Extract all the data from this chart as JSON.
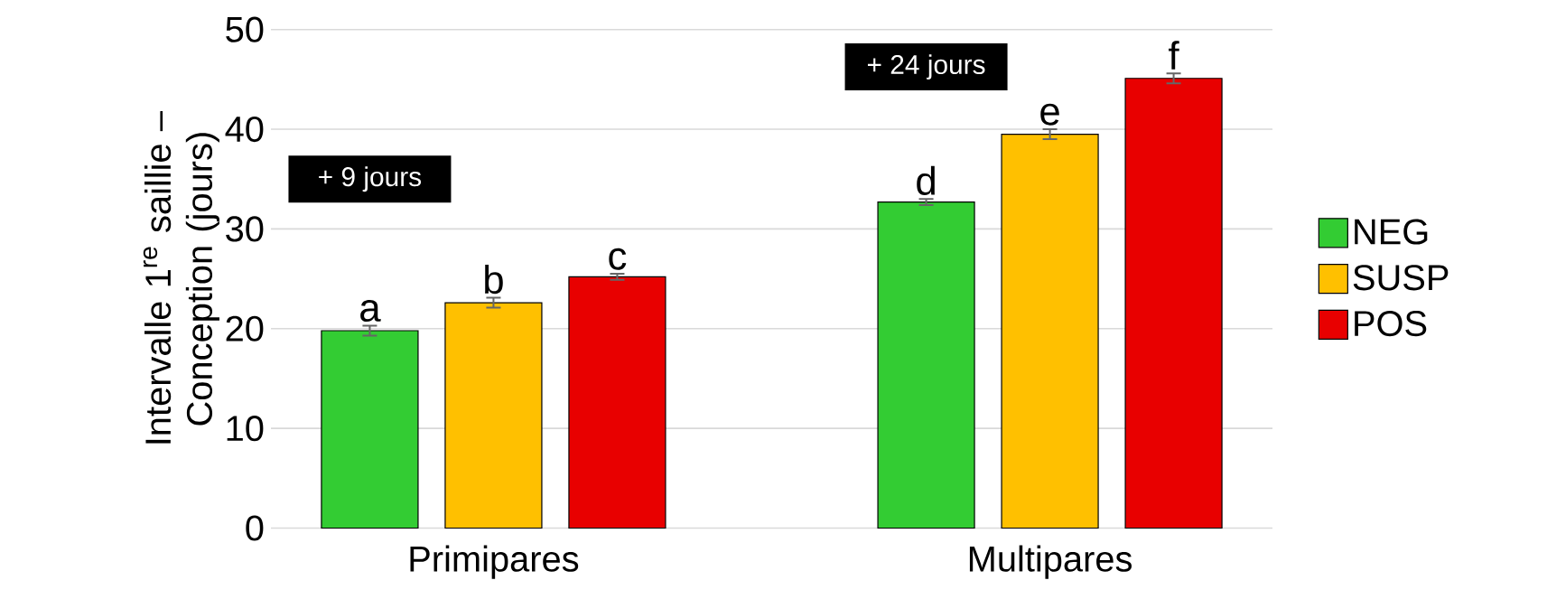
{
  "chart_data": {
    "type": "bar",
    "ylabel": "Intervalle 1$^{re}$ saillie – Conception (jours)",
    "categories": [
      "Primipares",
      "Multipares"
    ],
    "series": [
      {
        "name": "NEG",
        "color": "#33cc33",
        "values": [
          19.8,
          32.7
        ],
        "errors": [
          0.5,
          0.3
        ],
        "value_labels": [
          "a",
          "d"
        ]
      },
      {
        "name": "SUSP",
        "color": "#ffc000",
        "values": [
          22.6,
          39.5
        ],
        "errors": [
          0.5,
          0.5
        ],
        "value_labels": [
          "b",
          "e"
        ]
      },
      {
        "name": "POS",
        "color": "#e80000",
        "values": [
          25.2,
          45.1
        ],
        "errors": [
          0.3,
          0.5
        ],
        "value_labels": [
          "c",
          "f"
        ]
      }
    ],
    "annotations": [
      "+ 9 jours",
      "+ 24 jours"
    ],
    "ylim": [
      0,
      50
    ],
    "yticks": [
      0,
      10,
      20,
      30,
      40,
      50
    ],
    "grid": "y",
    "legend": "right"
  }
}
